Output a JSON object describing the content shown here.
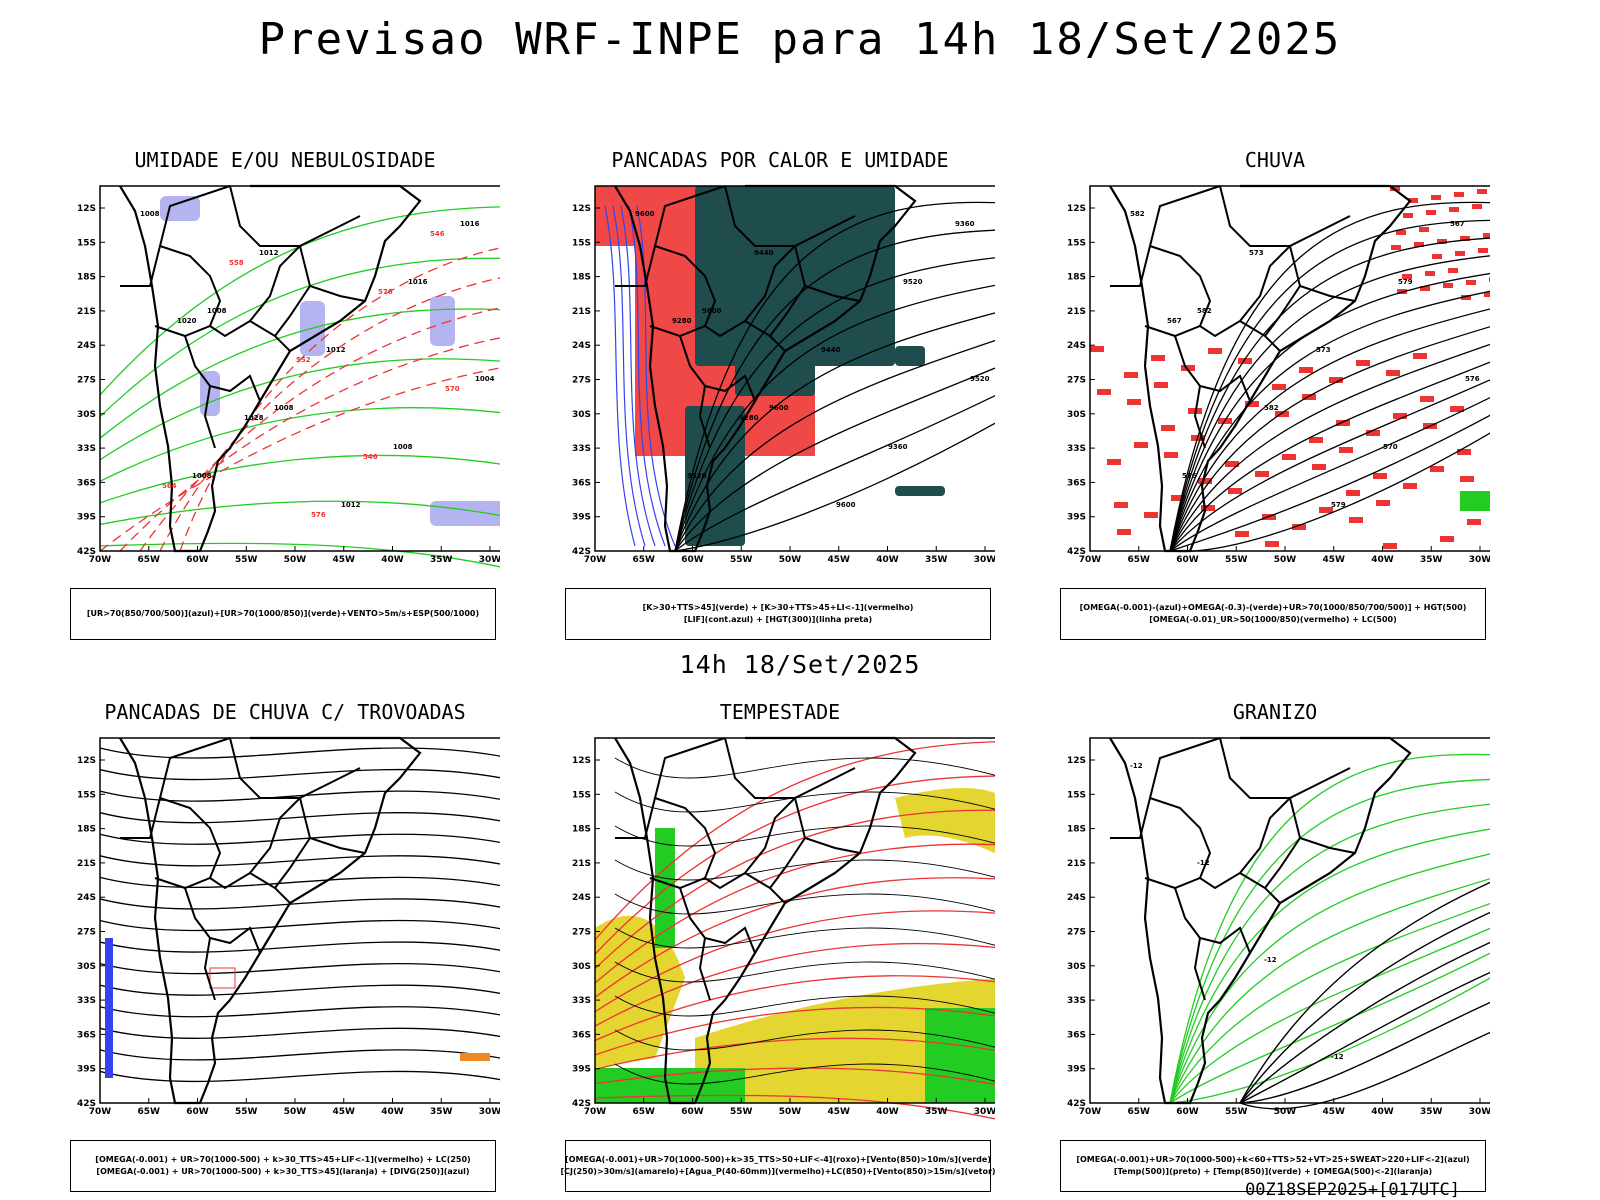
{
  "title": "Previsao WRF-INPE  para 14h 18/Set/2025",
  "subtitle": "14h 18/Set/2025",
  "footer": "00Z18SEP2025+[017UTC]",
  "axes": {
    "lat_labels": [
      "12S",
      "15S",
      "18S",
      "21S",
      "24S",
      "27S",
      "30S",
      "33S",
      "36S",
      "39S",
      "42S"
    ],
    "lon_labels": [
      "70W",
      "65W",
      "60W",
      "55W",
      "50W",
      "45W",
      "40W",
      "35W",
      "30W"
    ]
  },
  "colors": {
    "blue_shade": "#b4b4f0",
    "green_line": "#22cc22",
    "red_line": "#ee3333",
    "dark_teal": "#1f4d4d",
    "yellow": "#e5d530",
    "orange": "#ee8822",
    "blue_line": "#3344ee"
  },
  "panels": [
    {
      "title": "UMIDADE E/OU NEBULOSIDADE",
      "legend": [
        "[UR>70(850/700/500)](azul)+[UR>70(1000/850)](verde)+VENTO>5m/s+ESP(500/1000)"
      ],
      "contour_labels": [
        "1008",
        "1008",
        "1008",
        "1012",
        "1016",
        "1004",
        "1008",
        "1012",
        "1012",
        "1008",
        "1016",
        "1020",
        "1028",
        "576",
        "576",
        "570",
        "564",
        "558",
        "552",
        "546",
        "546"
      ]
    },
    {
      "title": "PANCADAS POR CALOR E UMIDADE",
      "legend": [
        "[K>30+TTS>45](verde) + [K>30+TTS>45+LI<-1](vermelho)",
        "[LIF](cont.azul) + [HGT(300)](linha preta)"
      ],
      "contour_labels": [
        "9600",
        "9600",
        "9600",
        "9600",
        "9520",
        "9520",
        "9520",
        "9440",
        "9440",
        "9360",
        "9360",
        "9280",
        "9280"
      ]
    },
    {
      "title": "CHUVA",
      "legend": [
        "[OMEGA(-0.001)-(azul)+OMEGA(-0.3)-(verde)+UR>70(1000/850/700/500)] + HGT(500)",
        "[OMEGA(-0.01)_UR>50(1000/850)(vermelho) + LC(500)"
      ],
      "contour_labels": [
        "582",
        "582",
        "582",
        "579",
        "579",
        "576",
        "576",
        "573",
        "573",
        "570",
        "567",
        "567"
      ]
    },
    {
      "title": "PANCADAS DE CHUVA C/ TROVOADAS",
      "legend": [
        "[OMEGA(-0.001) + UR>70(1000-500) + k>30_TTS>45+LIF<-1](vermelho) + LC(250)",
        "[OMEGA(-0.001) + UR>70(1000-500) + k>30_TTS>45](laranja) + [DIVG(250)](azul)"
      ],
      "contour_labels": []
    },
    {
      "title": "TEMPESTADE",
      "legend": [
        "[OMEGA(-0.001)+UR>70(1000-500)+k>35_TTS>50+LIF<-4](roxo)+[Vento(850)>10m/s](verde)",
        "[CJ(250)>30m/s](amarelo)+[Agua_P(40-60mm)](vermelho)+LC(850)+[Vento(850)>15m/s](vetor)"
      ],
      "contour_labels": []
    },
    {
      "title": "GRANIZO",
      "legend": [
        "[OMEGA(-0.001)+UR>70(1000-500)+k<60+TTS>52+VT>25+SWEAT>220+LIF<-2](azul)",
        "[Temp(500)](preto) + [Temp(850)](verde) + [OMEGA(500)<-2](laranja)"
      ],
      "contour_labels": [
        "-12",
        "-12",
        "-12",
        "-12"
      ]
    }
  ]
}
